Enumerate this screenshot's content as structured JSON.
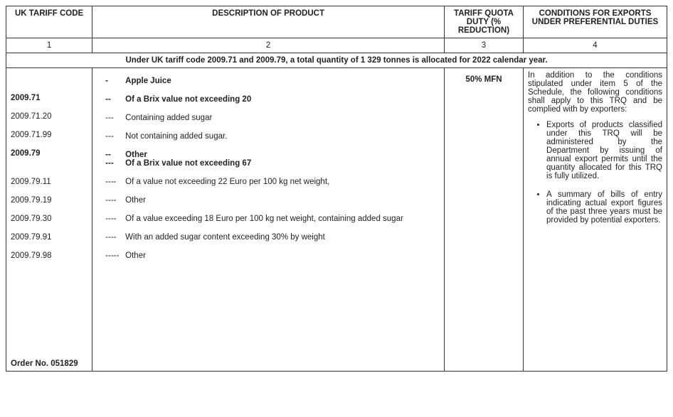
{
  "headers": {
    "col1": "UK TARIFF CODE",
    "col2": "DESCRIPTION OF PRODUCT",
    "col3": "TARIFF QUOTA DUTY (% REDUCTION)",
    "col4": "CONDITIONS FOR EXPORTS UNDER PREFERENTIAL DUTIES",
    "num1": "1",
    "num2": "2",
    "num3": "3",
    "num4": "4"
  },
  "allocation_note": "Under UK tariff code 2009.71 and 2009.79, a total quantity of 1 329 tonnes is allocated for 2022 calendar year.",
  "codes": [
    {
      "text": "2009.71",
      "bold": true
    },
    {
      "text": "2009.71.20",
      "bold": false
    },
    {
      "text": "2009.71.99",
      "bold": false
    },
    {
      "text": "2009.79",
      "bold": true
    },
    {
      "text": "2009.79.11",
      "bold": false
    },
    {
      "text": "2009.79.19",
      "bold": false
    },
    {
      "text": "2009.79.30",
      "bold": false
    },
    {
      "text": "2009.79.91",
      "bold": false
    },
    {
      "text": "2009.79.98",
      "bold": false
    }
  ],
  "order_no": "Order No. 051829",
  "descriptions": [
    {
      "dash": "-",
      "text": "Apple Juice",
      "bold": true,
      "top_gap": false
    },
    {
      "dash": "--",
      "text": "Of a Brix value not exceeding 20",
      "bold": true
    },
    {
      "dash": "---",
      "text": "Containing added sugar",
      "bold": false
    },
    {
      "dash": "---",
      "text": "Not containing added sugar.",
      "bold": false
    },
    {
      "dash": "--",
      "text": "Other",
      "bold": true
    },
    {
      "dash": "---",
      "text": "Of a Brix value not exceeding 67",
      "bold": true,
      "no_gap": true
    },
    {
      "dash": "----",
      "text": "Of a value not exceeding 22 Euro per 100 kg net weight,",
      "bold": false
    },
    {
      "dash": "----",
      "text": "Other",
      "bold": false
    },
    {
      "dash": "----",
      "text": "Of a value exceeding 18 Euro per 100 kg net weight, containing added  sugar",
      "bold": false
    },
    {
      "dash": "----",
      "text": "With an added sugar content exceeding 30% by weight",
      "bold": false
    },
    {
      "dash": "-----",
      "text": "Other",
      "bold": false
    }
  ],
  "duty": "50% MFN",
  "conditions_intro": "In addition to the conditions stipulated under item 5 of the Schedule, the following conditions shall apply to this TRQ and be complied with by exporters:",
  "conditions_bullets": [
    "Exports of products classified under this TRQ will be administered by the Department by issuing of annual export permits until the quantity allocated for this TRQ is fully utilized.",
    "A summary of bills of entry indicating actual export figures of the past three years must be provided by potential exporters."
  ]
}
